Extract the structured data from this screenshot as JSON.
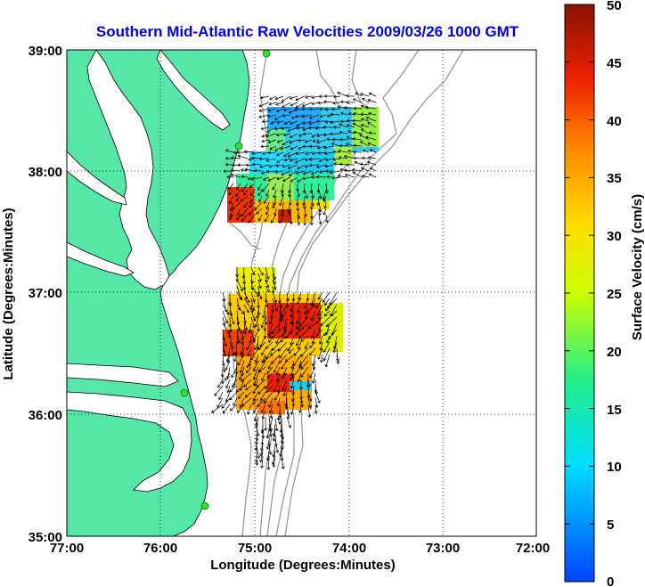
{
  "title": "Southern Mid-Atlantic Raw Velocities 2009/03/26 1000 GMT",
  "title_color": "#0000e0",
  "xlabel": "Longitude (Degrees:Minutes)",
  "ylabel": "Latitude (Degrees:Minutes)",
  "x_ticks": [
    "77:00",
    "76:00",
    "75:00",
    "74:00",
    "73:00",
    "72:00"
  ],
  "y_ticks": [
    "39:00",
    "38:00",
    "37:00",
    "36:00",
    "35:00"
  ],
  "colorbar": {
    "label": "Surface Velocity (cm/s)",
    "ticks": [
      "50",
      "45",
      "40",
      "35",
      "30",
      "25",
      "20",
      "15",
      "10",
      "5",
      "0"
    ],
    "range": [
      0,
      50
    ]
  },
  "colors": {
    "land": "#55e6a8",
    "ocean": "#ffffff",
    "coastline": "#000000",
    "bathymetry": "#999999",
    "grid": "#000000",
    "stations": "#33dd33"
  },
  "map_extent": {
    "lon": [
      -77,
      -72
    ],
    "lat": [
      35,
      39
    ]
  },
  "grid": "dotted"
}
